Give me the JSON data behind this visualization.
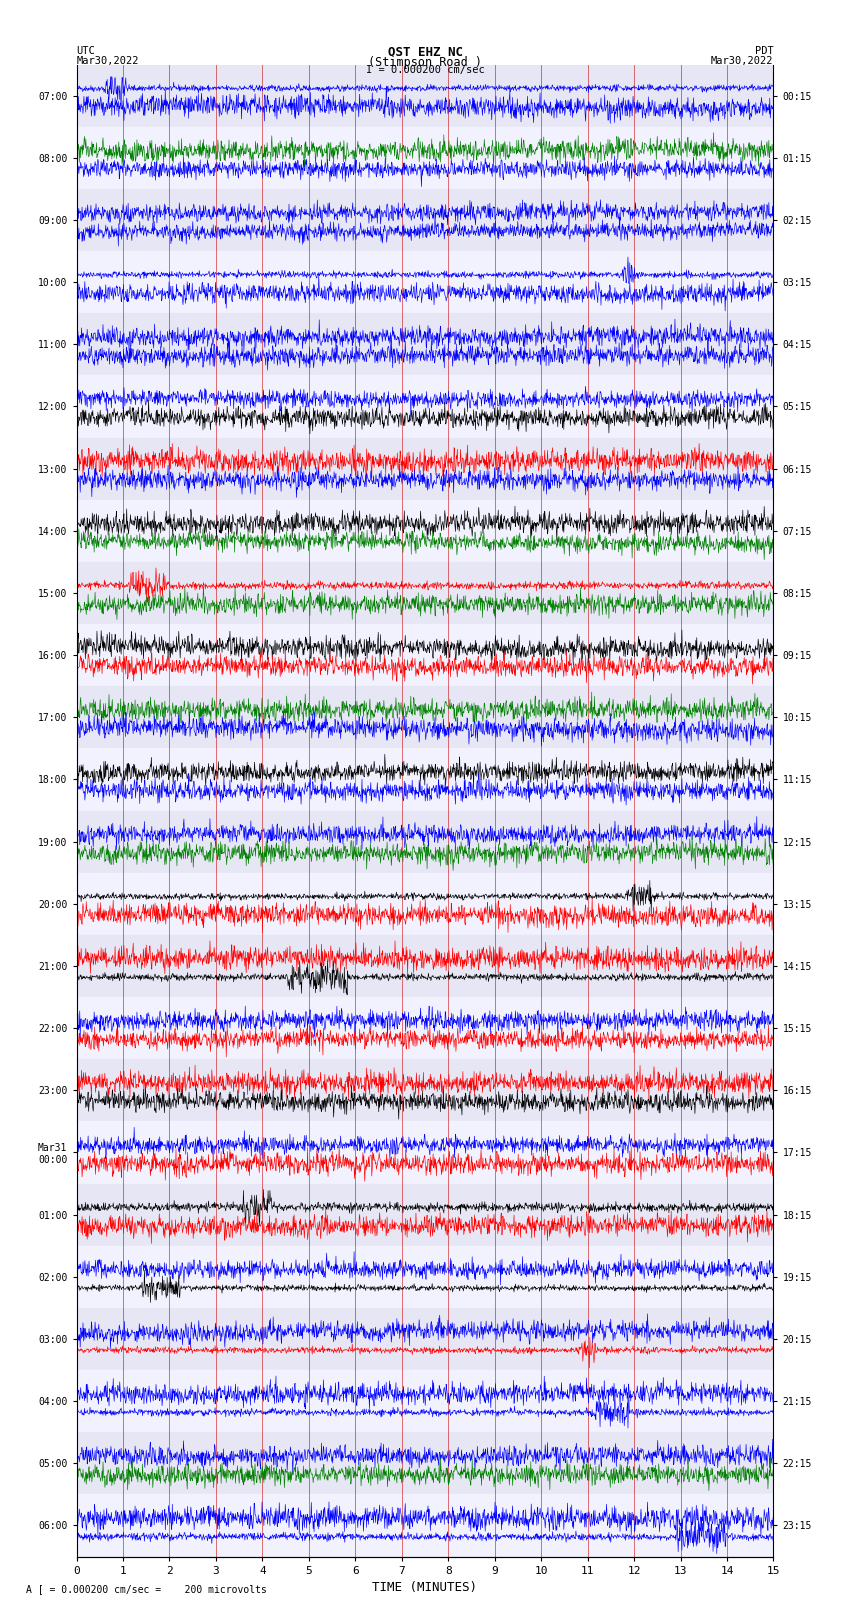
{
  "title_line1": "OST EHZ NC",
  "title_line2": "(Stimpson Road )",
  "title_line3": "I = 0.000200 cm/sec",
  "left_header_line1": "UTC",
  "left_header_line2": "Mar30,2022",
  "right_header_line1": "PDT",
  "right_header_line2": "Mar30,2022",
  "footer": "A [ = 0.000200 cm/sec =    200 microvolts",
  "xlabel": "TIME (MINUTES)",
  "bg_color": "#ffffff",
  "left_labels": [
    "07:00",
    "08:00",
    "09:00",
    "10:00",
    "11:00",
    "12:00",
    "13:00",
    "14:00",
    "15:00",
    "16:00",
    "17:00",
    "18:00",
    "19:00",
    "20:00",
    "21:00",
    "22:00",
    "23:00",
    "Mar31\n00:00",
    "01:00",
    "02:00",
    "03:00",
    "04:00",
    "05:00",
    "06:00"
  ],
  "right_labels": [
    "00:15",
    "01:15",
    "02:15",
    "03:15",
    "04:15",
    "05:15",
    "06:15",
    "07:15",
    "08:15",
    "09:15",
    "10:15",
    "11:15",
    "12:15",
    "13:15",
    "14:15",
    "15:15",
    "16:15",
    "17:15",
    "18:15",
    "19:15",
    "20:15",
    "21:15",
    "22:15",
    "23:15"
  ],
  "n_rows": 24,
  "n_samples": 1500,
  "duration_minutes": 15,
  "vline_color": "#cc0000",
  "color_pattern": [
    "blue",
    "blue",
    "green",
    "blue",
    "blue",
    "blue",
    "blue",
    "blue",
    "blue",
    "blue",
    "blue",
    "black",
    "red",
    "blue",
    "black",
    "green",
    "red",
    "green",
    "black",
    "red",
    "green",
    "blue",
    "black",
    "blue",
    "blue",
    "green",
    "black",
    "red",
    "red",
    "black",
    "blue",
    "red",
    "red",
    "black",
    "blue",
    "red",
    "black",
    "red",
    "blue",
    "black",
    "blue",
    "red",
    "blue",
    "blue",
    "blue",
    "green",
    "blue",
    "blue"
  ],
  "amplitude_profile": [
    0.012,
    0.012,
    0.008,
    0.01,
    0.01,
    0.01,
    0.01,
    0.01,
    0.01,
    0.01,
    0.01,
    0.012,
    0.045,
    0.04,
    0.02,
    0.025,
    0.04,
    0.035,
    0.055,
    0.05,
    0.045,
    0.04,
    0.035,
    0.03,
    0.03,
    0.035,
    0.03,
    0.03,
    0.03,
    0.03,
    0.025,
    0.025,
    0.025,
    0.025,
    0.025,
    0.025,
    0.02,
    0.022,
    0.045,
    0.02,
    0.02,
    0.022,
    0.01,
    0.01,
    0.01,
    0.012,
    0.01,
    0.01
  ]
}
